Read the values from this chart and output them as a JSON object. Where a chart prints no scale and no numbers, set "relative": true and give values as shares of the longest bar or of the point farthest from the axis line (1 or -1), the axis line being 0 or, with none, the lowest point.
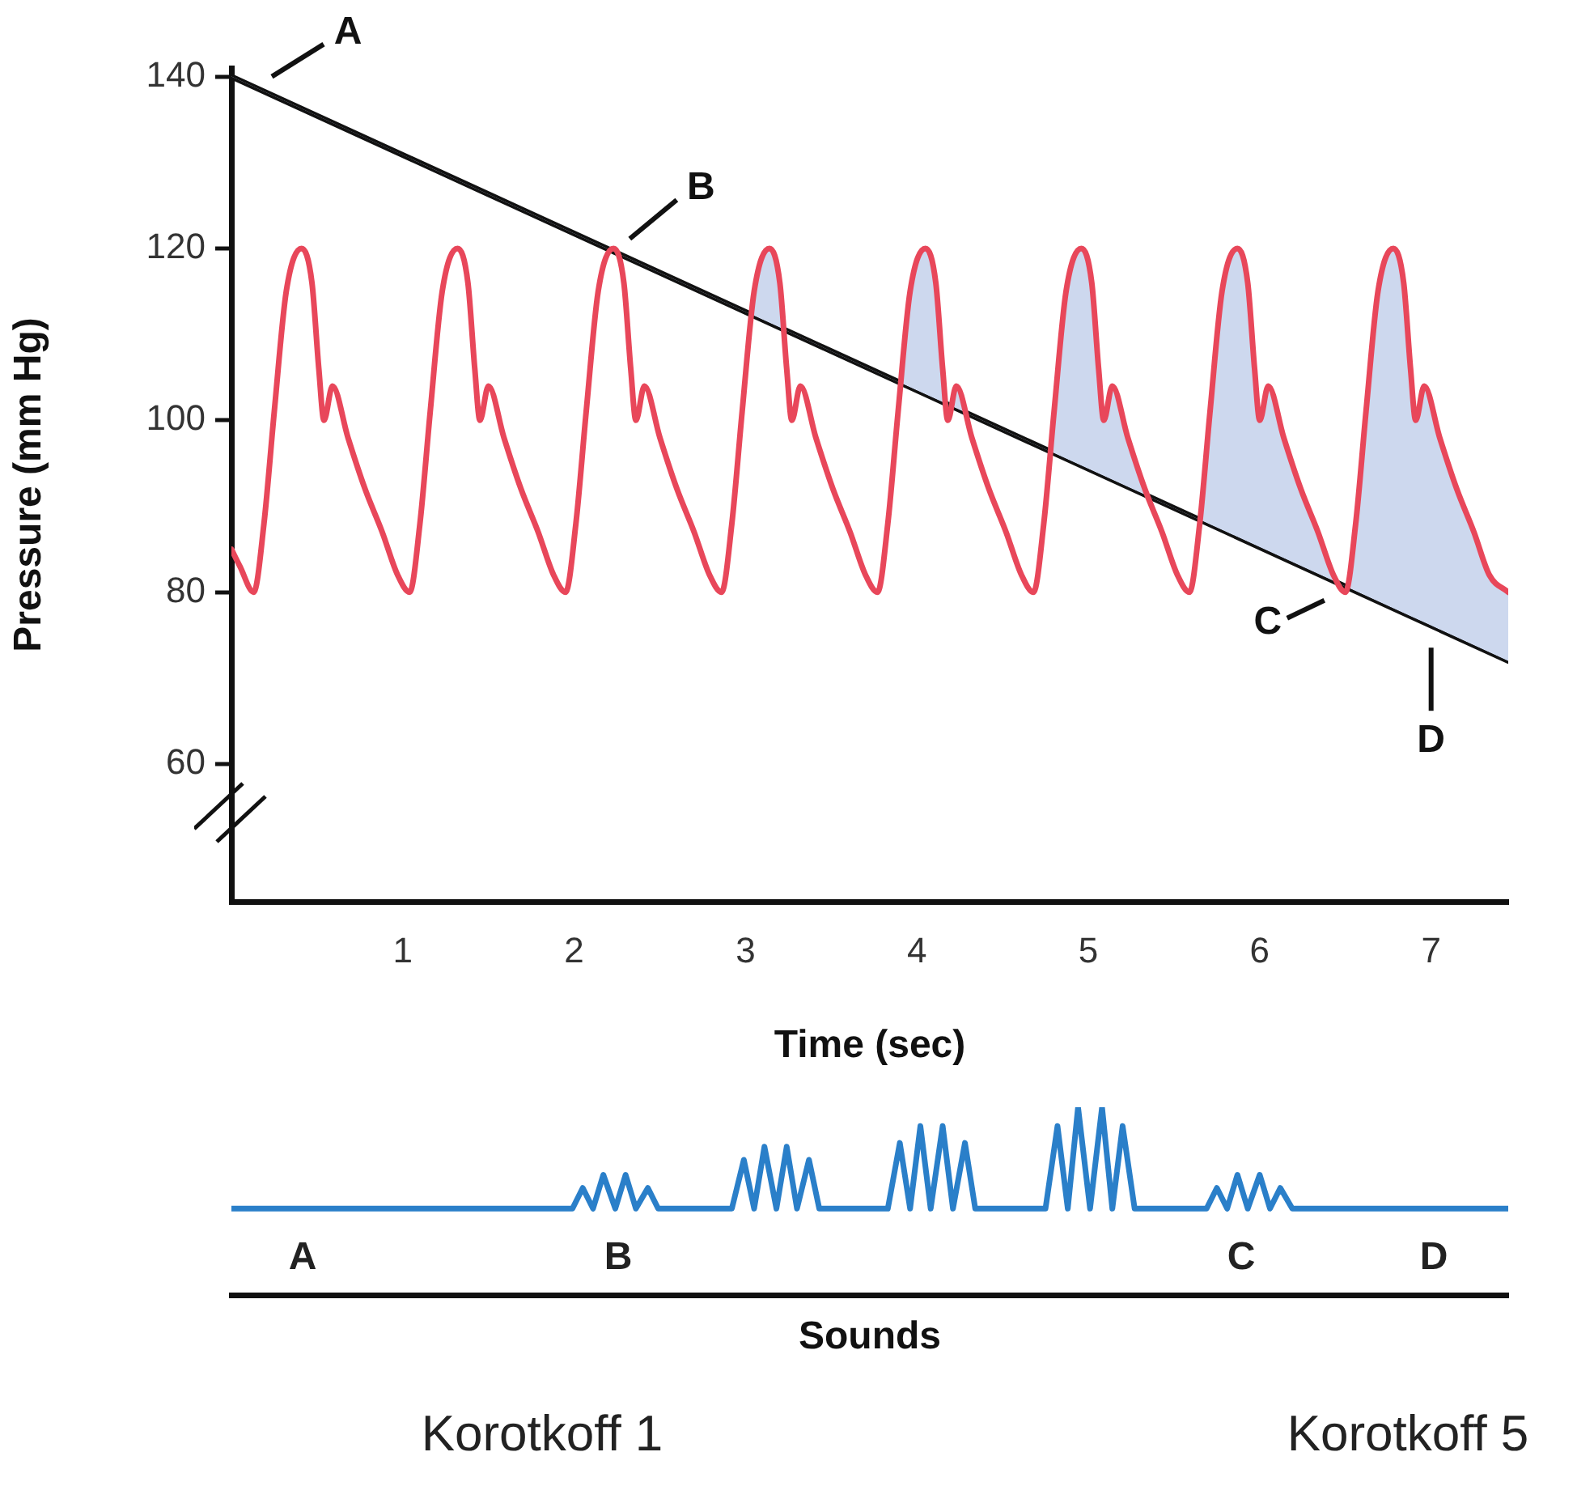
{
  "chart_data": [
    {
      "type": "line",
      "xlabel": "Time (sec)",
      "ylabel": "Pressure (mm Hg)",
      "xlim": [
        0,
        7.45
      ],
      "xticks": [
        1,
        2,
        3,
        4,
        5,
        6,
        7
      ],
      "ylim": [
        44,
        141
      ],
      "yticks": [
        60,
        80,
        100,
        120,
        140
      ],
      "grid": false,
      "legend": false,
      "marker": "none",
      "line_style": "solid",
      "series": [
        {
          "color": "#111111",
          "x": [
            0,
            7.45
          ],
          "values": [
            140,
            72
          ]
        },
        {
          "color": "#e8475a",
          "x": [
            0,
            0.05,
            0.13,
            0.19,
            0.25,
            0.32,
            0.41,
            0.47,
            0.51,
            0.54,
            0.59,
            0.68,
            0.78,
            0.88,
            0.97,
            1.04,
            1.1,
            1.16,
            1.23,
            1.32,
            1.38,
            1.42,
            1.45,
            1.5,
            1.59,
            1.69,
            1.79,
            1.88,
            1.95,
            2.01,
            2.07,
            2.14,
            2.23,
            2.29,
            2.33,
            2.36,
            2.41,
            2.5,
            2.6,
            2.7,
            2.79,
            2.86,
            2.92,
            2.98,
            3.05,
            3.14,
            3.2,
            3.24,
            3.27,
            3.32,
            3.41,
            3.51,
            3.61,
            3.7,
            3.77,
            3.83,
            3.89,
            3.96,
            4.05,
            4.11,
            4.15,
            4.18,
            4.23,
            4.32,
            4.42,
            4.52,
            4.61,
            4.68,
            4.74,
            4.8,
            4.87,
            4.96,
            5.02,
            5.06,
            5.09,
            5.14,
            5.23,
            5.33,
            5.43,
            5.52,
            5.59,
            5.65,
            5.71,
            5.78,
            5.87,
            5.93,
            5.97,
            6.0,
            6.05,
            6.14,
            6.24,
            6.34,
            6.43,
            6.5,
            6.56,
            6.62,
            6.69,
            6.78,
            6.84,
            6.88,
            6.91,
            6.96,
            7.05,
            7.15,
            7.25,
            7.34,
            7.45
          ],
          "values": [
            85,
            83,
            80,
            88,
            101,
            115,
            120,
            116,
            106,
            100,
            104,
            98,
            92,
            87,
            82,
            80,
            88,
            101,
            115,
            120,
            116,
            106,
            100,
            104,
            98,
            92,
            87,
            82,
            80,
            88,
            101,
            115,
            120,
            116,
            106,
            100,
            104,
            98,
            92,
            87,
            82,
            80,
            88,
            101,
            115,
            120,
            116,
            106,
            100,
            104,
            98,
            92,
            87,
            82,
            80,
            88,
            101,
            115,
            120,
            116,
            106,
            100,
            104,
            98,
            92,
            87,
            82,
            80,
            88,
            101,
            115,
            120,
            116,
            106,
            100,
            104,
            98,
            92,
            87,
            82,
            80,
            88,
            101,
            115,
            120,
            116,
            106,
            100,
            104,
            98,
            92,
            87,
            82,
            80,
            88,
            101,
            115,
            120,
            116,
            106,
            100,
            104,
            98,
            92,
            87,
            82,
            80
          ]
        }
      ],
      "annotations": [
        {
          "text": "A",
          "x": 0,
          "y": 140
        },
        {
          "text": "B",
          "x": 2.23,
          "y": 120
        },
        {
          "text": "C",
          "x": 6.5,
          "y": 80
        },
        {
          "text": "D",
          "x": 7,
          "y": 76
        }
      ]
    },
    {
      "type": "line",
      "relative": true,
      "xlabel": "Sounds",
      "xlim": [
        0,
        7.45
      ],
      "grid": false,
      "legend": false,
      "marker": "none",
      "line_style": "solid",
      "series": [
        {
          "color": "#2a7fc9",
          "x": [
            0,
            1.99,
            2.05,
            2.11,
            2.17,
            2.24,
            2.3,
            2.36,
            2.43,
            2.49,
            2.92,
            2.99,
            3.05,
            3.11,
            3.18,
            3.24,
            3.3,
            3.37,
            3.43,
            3.83,
            3.9,
            3.96,
            4.02,
            4.08,
            4.15,
            4.21,
            4.28,
            4.34,
            4.75,
            4.82,
            4.88,
            4.94,
            5.01,
            5.08,
            5.14,
            5.2,
            5.27,
            5.69,
            5.75,
            5.81,
            5.87,
            5.93,
            6.0,
            6.06,
            6.12,
            6.19,
            7.45
          ],
          "values": [
            0.46,
            0.46,
            0.57,
            0.46,
            0.64,
            0.46,
            0.64,
            0.46,
            0.57,
            0.46,
            0.46,
            0.72,
            0.46,
            0.79,
            0.46,
            0.79,
            0.46,
            0.72,
            0.46,
            0.46,
            0.81,
            0.46,
            0.9,
            0.46,
            0.9,
            0.46,
            0.81,
            0.46,
            0.46,
            0.9,
            0.46,
            1,
            0.46,
            1,
            0.46,
            0.9,
            0.46,
            0.46,
            0.57,
            0.46,
            0.64,
            0.46,
            0.64,
            0.46,
            0.57,
            0.46,
            0.46
          ]
        }
      ],
      "annotations": [
        "A",
        "B",
        "C",
        "D",
        "Korotkoff 1",
        "Korotkoff 5"
      ]
    }
  ]
}
